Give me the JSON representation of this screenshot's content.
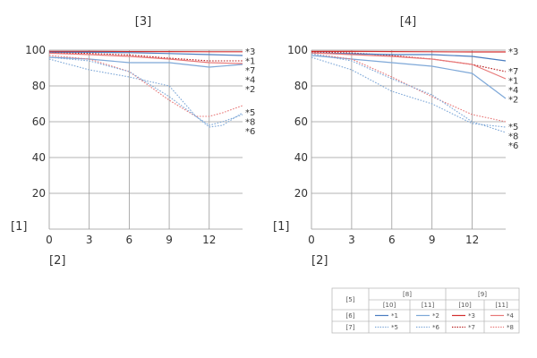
{
  "chart_data": [
    {
      "type": "line",
      "title": "[3]",
      "ylabel": "[1]",
      "xlabel": "[2]",
      "xlim": [
        0,
        14.5
      ],
      "ylim": [
        0,
        100
      ],
      "x_ticks": [
        "0",
        "3",
        "6",
        "9",
        "12"
      ],
      "y_ticks": [
        "20",
        "40",
        "60",
        "80",
        "100"
      ],
      "grid": true,
      "series": [
        {
          "name": "*3",
          "color": "#d32f2f",
          "dash": "solid",
          "x": [
            0,
            3,
            6,
            9,
            12,
            14.5
          ],
          "y": [
            99.3,
            99.3,
            99.2,
            99.2,
            99.1,
            99.1
          ]
        },
        {
          "name": "*1",
          "color": "#4a7dc0",
          "dash": "solid",
          "x": [
            0,
            3,
            6,
            9,
            12,
            14.5
          ],
          "y": [
            98.8,
            98.8,
            98.6,
            98.1,
            97.5,
            97.0
          ]
        },
        {
          "name": "*7",
          "color": "#b71c1c",
          "dash": "dotted",
          "x": [
            0,
            3,
            6,
            9,
            12,
            14.5
          ],
          "y": [
            98.5,
            98.2,
            97.3,
            95.5,
            94.0,
            94.0
          ]
        },
        {
          "name": "*4",
          "color": "#e87878",
          "dash": "solid",
          "x": [
            0,
            3,
            6,
            9,
            12,
            14.5
          ],
          "y": [
            98.3,
            97.5,
            96.5,
            95.0,
            93.0,
            92.5
          ]
        },
        {
          "name": "*2",
          "color": "#7ea8d8",
          "dash": "solid",
          "x": [
            0,
            3,
            6,
            9,
            12,
            14.5
          ],
          "y": [
            96.0,
            95.0,
            93.0,
            93.0,
            90.5,
            92.0
          ]
        },
        {
          "name": "*5",
          "color": "#7ea8d8",
          "dash": "dotted",
          "x": [
            0,
            3,
            6,
            9,
            11,
            12,
            13,
            14.5
          ],
          "y": [
            95.0,
            89.0,
            85.0,
            80.0,
            63.0,
            57.0,
            58.0,
            65.0
          ]
        },
        {
          "name": "*8",
          "color": "#e87878",
          "dash": "dotted",
          "x": [
            0,
            3,
            6,
            9,
            11,
            12,
            13,
            14.5
          ],
          "y": [
            97.0,
            95.0,
            88.0,
            72.0,
            63.0,
            63.0,
            65.0,
            69.0
          ]
        },
        {
          "name": "*6",
          "color": "#7ea8d8",
          "dash": "dotted",
          "x": [
            0,
            3,
            6,
            9,
            11,
            12,
            13,
            14.5
          ],
          "y": [
            96.0,
            94.0,
            88.0,
            74.0,
            63.0,
            58.0,
            60.0,
            64.0
          ]
        }
      ]
    },
    {
      "type": "line",
      "title": "[4]",
      "ylabel": "[1]",
      "xlabel": "[2]",
      "xlim": [
        0,
        14.5
      ],
      "ylim": [
        0,
        100
      ],
      "x_ticks": [
        "0",
        "3",
        "6",
        "9",
        "12"
      ],
      "y_ticks": [
        "20",
        "40",
        "60",
        "80",
        "100"
      ],
      "grid": true,
      "series": [
        {
          "name": "*3",
          "color": "#d32f2f",
          "dash": "solid",
          "x": [
            0,
            3,
            6,
            9,
            12,
            14.5
          ],
          "y": [
            99.3,
            99.3,
            99.2,
            99.1,
            99.0,
            99.0
          ]
        },
        {
          "name": "*7",
          "color": "#b71c1c",
          "dash": "dotted",
          "x": [
            0,
            3,
            6,
            9,
            12,
            14.5
          ],
          "y": [
            99.0,
            98.5,
            97.0,
            95.0,
            92.0,
            88.0
          ]
        },
        {
          "name": "*1",
          "color": "#4a7dc0",
          "dash": "solid",
          "x": [
            0,
            3,
            6,
            9,
            12,
            14.5
          ],
          "y": [
            98.5,
            98.0,
            97.5,
            97.5,
            96.5,
            94.0
          ]
        },
        {
          "name": "*4",
          "color": "#e87878",
          "dash": "solid",
          "x": [
            0,
            3,
            6,
            9,
            12,
            14.5
          ],
          "y": [
            98.5,
            97.5,
            96.5,
            95.0,
            92.0,
            84.0
          ]
        },
        {
          "name": "*2",
          "color": "#7ea8d8",
          "dash": "solid",
          "x": [
            0,
            3,
            6,
            9,
            12,
            14.5
          ],
          "y": [
            97.0,
            95.0,
            93.0,
            91.0,
            87.0,
            73.0
          ]
        },
        {
          "name": "*5",
          "color": "#7ea8d8",
          "dash": "dotted",
          "x": [
            0,
            3,
            6,
            9,
            12,
            14.5
          ],
          "y": [
            96.0,
            89.0,
            77.0,
            70.0,
            59.0,
            57.0
          ]
        },
        {
          "name": "*8",
          "color": "#e87878",
          "dash": "dotted",
          "x": [
            0,
            3,
            6,
            9,
            12,
            14.5
          ],
          "y": [
            98.0,
            95.0,
            85.0,
            74.0,
            64.0,
            60.0
          ]
        },
        {
          "name": "*6",
          "color": "#7ea8d8",
          "dash": "dotted",
          "x": [
            0,
            3,
            6,
            9,
            12,
            14.5
          ],
          "y": [
            98.0,
            94.0,
            84.0,
            75.0,
            60.0,
            54.0
          ]
        }
      ]
    }
  ],
  "legend": {
    "corner": "[5]",
    "groups": [
      {
        "label": "[8]",
        "sub": [
          "[10]",
          "[11]"
        ]
      },
      {
        "label": "[9]",
        "sub": [
          "[10]",
          "[11]"
        ]
      }
    ],
    "rows": [
      {
        "label": "[6]",
        "entries": [
          {
            "text": "*1",
            "color": "#4a7dc0",
            "dash": "solid"
          },
          {
            "text": "*2",
            "color": "#7ea8d8",
            "dash": "solid"
          },
          {
            "text": "*3",
            "color": "#d32f2f",
            "dash": "solid"
          },
          {
            "text": "*4",
            "color": "#e87878",
            "dash": "solid"
          }
        ]
      },
      {
        "label": "[7]",
        "entries": [
          {
            "text": "*5",
            "color": "#7ea8d8",
            "dash": "dotted"
          },
          {
            "text": "*6",
            "color": "#7ea8d8",
            "dash": "dotted"
          },
          {
            "text": "*7",
            "color": "#b71c1c",
            "dash": "dotted"
          },
          {
            "text": "*8",
            "color": "#e87878",
            "dash": "dotted"
          }
        ]
      }
    ]
  }
}
